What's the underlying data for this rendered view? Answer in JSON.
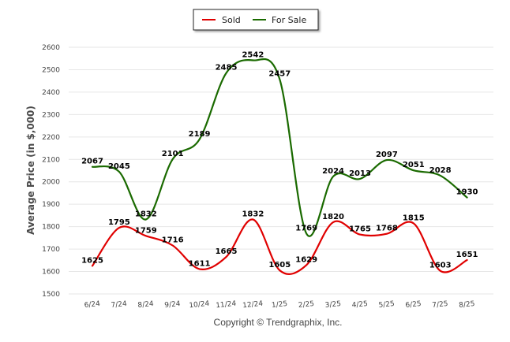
{
  "chart_data": {
    "type": "line",
    "title": "",
    "xlabel": "",
    "ylabel": "Average Price (in $,000)",
    "categories": [
      "6/24",
      "7/24",
      "8/24",
      "9/24",
      "10/24",
      "11/24",
      "12/24",
      "1/25",
      "2/25",
      "3/25",
      "4/25",
      "5/25",
      "6/25",
      "7/25",
      "8/25"
    ],
    "series": [
      {
        "name": "Sold",
        "color": "#e00000",
        "values": [
          1625,
          1795,
          1759,
          1716,
          1611,
          1665,
          1832,
          1605,
          1629,
          1820,
          1765,
          1768,
          1815,
          1603,
          1651
        ]
      },
      {
        "name": "For Sale",
        "color": "#1a6a00",
        "values": [
          2067,
          2045,
          1832,
          2101,
          2189,
          2485,
          2542,
          2457,
          1769,
          2024,
          2013,
          2097,
          2051,
          2028,
          1930
        ]
      }
    ],
    "ylim": [
      1500,
      2600
    ],
    "yticks": [
      1500,
      1600,
      1700,
      1800,
      1900,
      2000,
      2100,
      2200,
      2300,
      2400,
      2500,
      2600
    ],
    "grid": true,
    "legend_position": "top-center",
    "footer": "Copyright © Trendgraphix, Inc."
  }
}
